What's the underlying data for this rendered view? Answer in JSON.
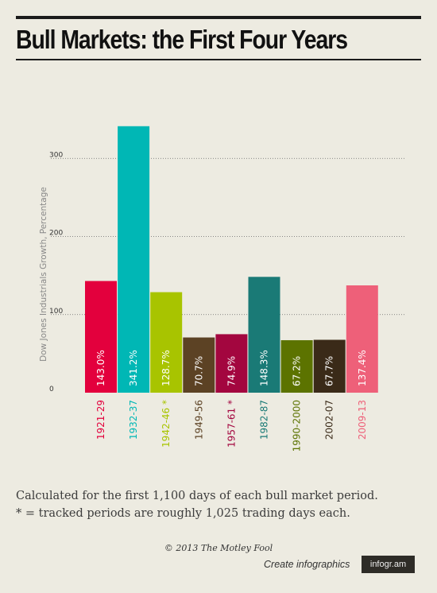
{
  "title": "Bull Markets: the First Four Years",
  "chart_data": {
    "type": "bar",
    "title": "Bull Markets: the First Four Years",
    "ylabel": "Dow Jones Industrials Growth, Percentage",
    "xlabel": "",
    "ylim": [
      0,
      350
    ],
    "yticks": [
      0,
      100,
      200,
      300
    ],
    "grid": true,
    "categories": [
      "1921-29",
      "1932-37",
      "1942-46 *",
      "1949-56",
      "1957-61 *",
      "1982-87",
      "1990-2000",
      "2002-07",
      "2009-13"
    ],
    "values": [
      143.0,
      341.2,
      128.7,
      70.7,
      74.9,
      148.3,
      67.2,
      67.7,
      137.4
    ],
    "value_labels": [
      "143.0%",
      "341.2%",
      "128.7%",
      "70.7%",
      "74.9%",
      "148.3%",
      "67.2%",
      "67.7%",
      "137.4%"
    ],
    "colors": [
      "#e3003d",
      "#00b7b5",
      "#a8c400",
      "#5c4224",
      "#a3063f",
      "#1a7a76",
      "#5c7300",
      "#3a2a18",
      "#ee6079"
    ]
  },
  "notes": [
    "Calculated for the first 1,100 days of each bull market period.",
    "* = tracked periods are roughly 1,025 trading days each."
  ],
  "copyright": "© 2013 The Motley Fool",
  "footer_link": "Create infographics",
  "brand": "infogr.am"
}
